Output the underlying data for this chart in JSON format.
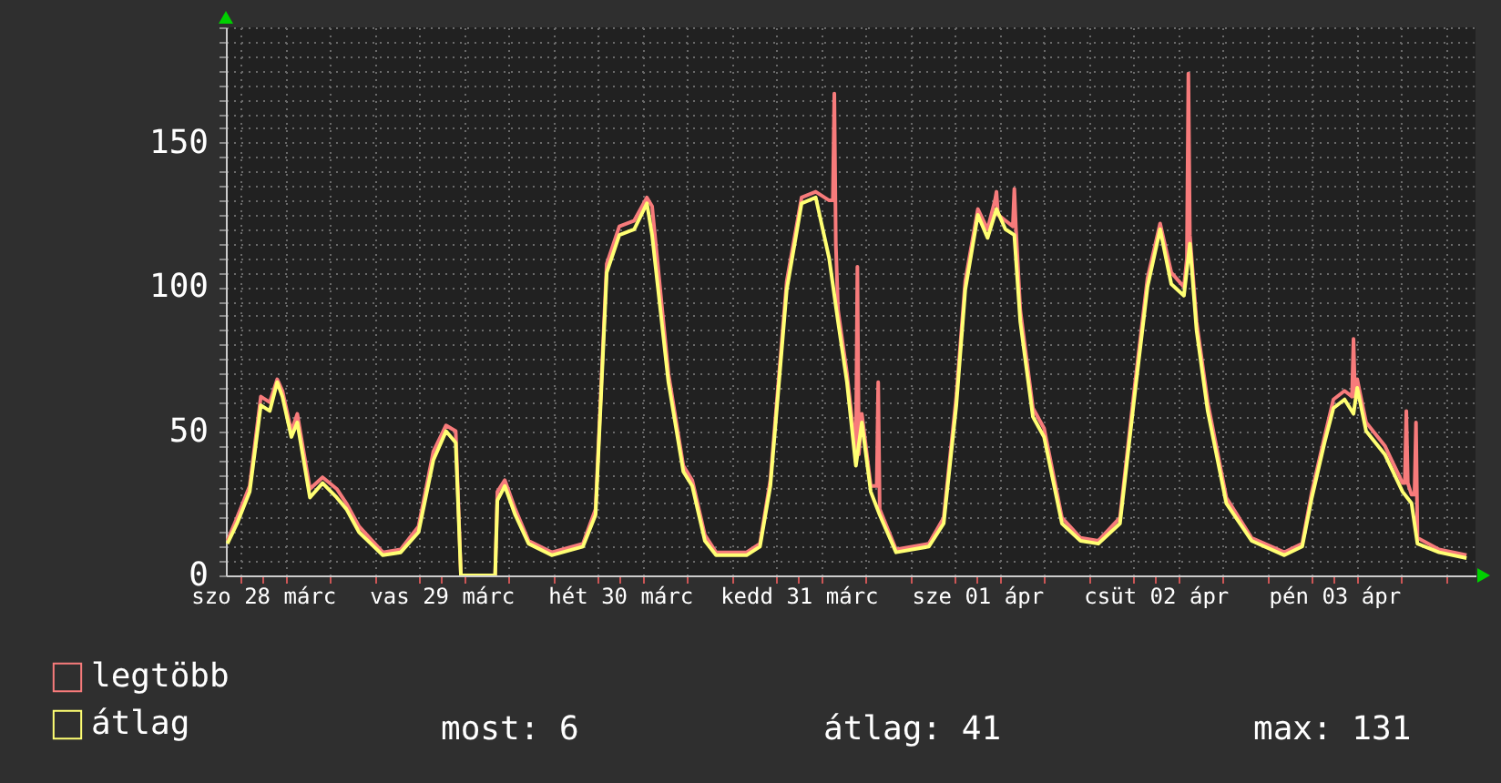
{
  "chart_data": {
    "type": "line",
    "xlim": [
      "--03-28T04:00",
      "--04-04T04:00"
    ],
    "xticks": [
      {
        "value": "--03-28T06:00",
        "label": null
      },
      {
        "value": "--03-28T09:00",
        "label": "szo 28 márc"
      },
      {
        "value": "--03-28T12:00",
        "label": null
      },
      {
        "value": "--03-28T18:00",
        "label": null
      },
      {
        "value": "--03-29T00:00",
        "label": null
      },
      {
        "value": "--03-29T06:00",
        "label": null
      },
      {
        "value": "--03-29T09:00",
        "label": "vas 29 márc"
      },
      {
        "value": "--03-29T12:00",
        "label": null
      },
      {
        "value": "--03-29T18:00",
        "label": null
      },
      {
        "value": "--03-30T00:00",
        "label": null
      },
      {
        "value": "--03-30T06:00",
        "label": null
      },
      {
        "value": "--03-30T09:00",
        "label": "hét 30 márc"
      },
      {
        "value": "--03-30T12:00",
        "label": null
      },
      {
        "value": "--03-30T18:00",
        "label": null
      },
      {
        "value": "--03-31T00:00",
        "label": null
      },
      {
        "value": "--03-31T06:00",
        "label": null
      },
      {
        "value": "--03-31T09:00",
        "label": "kedd 31 márc"
      },
      {
        "value": "--03-31T12:00",
        "label": null
      },
      {
        "value": "--03-31T18:00",
        "label": null
      },
      {
        "value": "--04-01T00:00",
        "label": null
      },
      {
        "value": "--04-01T06:00",
        "label": null
      },
      {
        "value": "--04-01T09:00",
        "label": "sze 01 ápr"
      },
      {
        "value": "--04-01T12:00",
        "label": null
      },
      {
        "value": "--04-01T18:00",
        "label": null
      },
      {
        "value": "--04-02T00:00",
        "label": null
      },
      {
        "value": "--04-02T06:00",
        "label": null
      },
      {
        "value": "--04-02T09:00",
        "label": "csüt 02 ápr"
      },
      {
        "value": "--04-02T12:00",
        "label": null
      },
      {
        "value": "--04-02T18:00",
        "label": null
      },
      {
        "value": "--04-03T00:00",
        "label": null
      },
      {
        "value": "--04-03T06:00",
        "label": null
      },
      {
        "value": "--04-03T09:00",
        "label": "pén 03 ápr"
      },
      {
        "value": "--04-03T12:00",
        "label": null
      },
      {
        "value": "--04-03T18:00",
        "label": null
      },
      {
        "value": "--04-04T00:00",
        "label": null
      }
    ],
    "ylim": [
      0,
      190
    ],
    "yticks": [
      0,
      {
        "value": 5,
        "label": null
      },
      {
        "value": 10,
        "label": null
      },
      {
        "value": 15,
        "label": null
      },
      {
        "value": 20,
        "label": null
      },
      {
        "value": 25,
        "label": null
      },
      {
        "value": 30,
        "label": null
      },
      {
        "value": 35,
        "label": null
      },
      {
        "value": 40,
        "label": null
      },
      {
        "value": 45,
        "label": null
      },
      50,
      {
        "value": 55,
        "label": null
      },
      {
        "value": 60,
        "label": null
      },
      {
        "value": 65,
        "label": null
      },
      {
        "value": 70,
        "label": null
      },
      {
        "value": 75,
        "label": null
      },
      {
        "value": 80,
        "label": null
      },
      {
        "value": 85,
        "label": null
      },
      {
        "value": 90,
        "label": null
      },
      {
        "value": 95,
        "label": null
      },
      100,
      {
        "value": 105,
        "label": null
      },
      {
        "value": 110,
        "label": null
      },
      {
        "value": 115,
        "label": null
      },
      {
        "value": 120,
        "label": null
      },
      {
        "value": 125,
        "label": null
      },
      {
        "value": 130,
        "label": null
      },
      {
        "value": 135,
        "label": null
      },
      {
        "value": 140,
        "label": null
      },
      {
        "value": 145,
        "label": null
      },
      150,
      {
        "value": 155,
        "label": null
      },
      {
        "value": 160,
        "label": null
      },
      {
        "value": 165,
        "label": null
      },
      {
        "value": 170,
        "label": null
      },
      {
        "value": 175,
        "label": null
      },
      {
        "value": 180,
        "label": null
      },
      {
        "value": 185,
        "label": null
      },
      {
        "value": 190,
        "label": null
      }
    ],
    "grid": true,
    "legend": "bottom",
    "series": [
      {
        "name": "legtöbb",
        "color": "#f77b7b",
        "x": [
          "--03-28T04:12",
          "--03-28T05:30",
          "--03-28T07:12",
          "--03-28T08:42",
          "--03-28T09:54",
          "--03-28T10:54",
          "--03-28T11:36",
          "--03-28T12:48",
          "--03-28T13:36",
          "--03-28T15:18",
          "--03-28T17:00",
          "--03-28T18:54",
          "--03-28T20:12",
          "--03-28T21:54",
          "--03-29T01:06",
          "--03-29T03:30",
          "--03-29T05:54",
          "--03-29T07:54",
          "--03-29T09:36",
          "--03-29T10:54",
          "--03-29T11:36",
          "--03-29T16:12",
          "--03-29T16:30",
          "--03-29T17:30",
          "--03-29T18:54",
          "--03-29T20:42",
          "--03-29T23:48",
          "--03-30T04:00",
          "--03-30T05:42",
          "--03-30T07:12",
          "--03-30T08:54",
          "--03-30T10:54",
          "--03-30T12:36",
          "--03-30T13:18",
          "--03-30T15:30",
          "--03-30T17:30",
          "--03-30T18:42",
          "--03-30T20:24",
          "--03-30T21:54",
          "--03-31T02:00",
          "--03-31T03:48",
          "--03-31T05:12",
          "--03-31T07:24",
          "--03-31T09:24",
          "--03-31T11:18",
          "--03-31T13:06",
          "--03-31T13:36",
          "--03-31T13:48",
          "--03-31T14:00",
          "--03-31T14:18",
          "--03-31T15:30",
          "--03-31T16:42",
          "--03-31T16:54",
          "--03-31T17:06",
          "--03-31T17:30",
          "--03-31T18:42",
          "--03-31T19:30",
          "--03-31T19:42",
          "--03-31T19:54",
          "--03-31T22:06",
          "--04-01T02:30",
          "--04-01T04:30",
          "--04-01T06:12",
          "--04-01T07:24",
          "--04-01T09:06",
          "--04-01T10:24",
          "--04-01T11:24",
          "--04-01T11:36",
          "--04-01T11:48",
          "--04-01T12:48",
          "--04-01T13:48",
          "--04-01T14:00",
          "--04-01T14:12",
          "--04-01T14:48",
          "--04-01T16:30",
          "--04-01T18:00",
          "--04-01T20:24",
          "--04-01T22:54",
          "--04-02T01:18",
          "--04-02T04:12",
          "--04-02T06:12",
          "--04-02T07:54",
          "--04-02T09:36",
          "--04-02T11:06",
          "--04-02T12:48",
          "--04-02T13:12",
          "--04-02T13:24",
          "--04-02T13:36",
          "--04-02T14:30",
          "--04-02T16:00",
          "--04-02T18:30",
          "--04-02T21:54",
          "--04-03T02:18",
          "--04-03T04:42",
          "--04-03T06:00",
          "--04-03T07:42",
          "--04-03T08:54",
          "--04-03T10:24",
          "--04-03T11:24",
          "--04-03T11:36",
          "--04-03T11:48",
          "--04-03T12:06",
          "--04-03T13:18",
          "--04-03T15:48",
          "--04-03T18:12",
          "--04-03T18:30",
          "--04-03T18:42",
          "--04-03T18:54",
          "--04-03T19:24",
          "--04-03T19:48",
          "--04-03T20:00",
          "--04-03T20:12",
          "--04-03T23:06",
          "--04-04T02:48"
        ],
        "values": [
          12,
          20,
          31,
          62,
          60,
          68,
          64,
          50,
          56,
          30,
          34,
          30,
          25,
          17,
          8,
          9,
          17,
          43,
          52,
          50,
          0,
          0,
          29,
          33,
          23,
          12,
          8,
          11,
          23,
          108,
          121,
          123,
          131,
          128,
          70,
          38,
          33,
          14,
          8,
          8,
          11,
          33,
          102,
          131,
          133,
          130,
          130,
          167,
          115,
          92,
          70,
          42,
          107,
          42,
          56,
          31,
          31,
          67,
          23,
          9,
          11,
          20,
          62,
          102,
          127,
          120,
          130,
          133,
          125,
          123,
          121,
          134,
          121,
          92,
          58,
          51,
          20,
          13,
          12,
          20,
          66,
          103,
          122,
          105,
          100,
          110,
          174,
          118,
          88,
          60,
          27,
          13,
          8,
          11,
          29,
          48,
          61,
          64,
          62,
          82,
          62,
          68,
          53,
          45,
          32,
          32,
          57,
          32,
          28,
          28,
          53,
          13,
          9,
          7
        ]
      },
      {
        "name": "átlag",
        "color": "#ffff73",
        "x": [
          "--03-28T04:12",
          "--03-28T05:30",
          "--03-28T07:12",
          "--03-28T08:42",
          "--03-28T09:54",
          "--03-28T10:54",
          "--03-28T11:36",
          "--03-28T12:48",
          "--03-28T13:36",
          "--03-28T15:18",
          "--03-28T17:00",
          "--03-28T18:54",
          "--03-28T20:12",
          "--03-28T21:54",
          "--03-29T01:06",
          "--03-29T03:30",
          "--03-29T05:54",
          "--03-29T07:54",
          "--03-29T09:36",
          "--03-29T10:54",
          "--03-29T11:36",
          "--03-29T16:12",
          "--03-29T16:30",
          "--03-29T17:30",
          "--03-29T18:54",
          "--03-29T20:42",
          "--03-29T23:48",
          "--03-30T04:00",
          "--03-30T05:42",
          "--03-30T07:12",
          "--03-30T08:54",
          "--03-30T10:54",
          "--03-30T12:36",
          "--03-30T13:18",
          "--03-30T15:30",
          "--03-30T17:30",
          "--03-30T18:42",
          "--03-30T20:24",
          "--03-30T21:54",
          "--03-31T02:00",
          "--03-31T03:48",
          "--03-31T05:12",
          "--03-31T07:24",
          "--03-31T09:24",
          "--03-31T11:18",
          "--03-31T13:06",
          "--03-31T14:18",
          "--03-31T15:30",
          "--03-31T16:42",
          "--03-31T17:30",
          "--03-31T18:42",
          "--03-31T19:54",
          "--03-31T22:06",
          "--04-01T02:30",
          "--04-01T04:30",
          "--04-01T06:12",
          "--04-01T07:24",
          "--04-01T09:06",
          "--04-01T10:24",
          "--04-01T11:36",
          "--04-01T12:48",
          "--04-01T14:00",
          "--04-01T14:48",
          "--04-01T16:30",
          "--04-01T18:00",
          "--04-01T20:24",
          "--04-01T22:54",
          "--04-02T01:18",
          "--04-02T04:12",
          "--04-02T06:12",
          "--04-02T07:54",
          "--04-02T09:36",
          "--04-02T11:06",
          "--04-02T12:48",
          "--04-02T13:36",
          "--04-02T14:30",
          "--04-02T16:00",
          "--04-02T18:30",
          "--04-02T21:54",
          "--04-03T02:18",
          "--04-03T04:42",
          "--04-03T06:00",
          "--04-03T07:42",
          "--04-03T08:54",
          "--04-03T10:24",
          "--04-03T11:36",
          "--04-03T12:06",
          "--04-03T13:18",
          "--04-03T15:48",
          "--04-03T18:12",
          "--04-03T19:24",
          "--04-03T20:12",
          "--04-03T23:06",
          "--04-04T02:48"
        ],
        "values": [
          11,
          18,
          29,
          59,
          57,
          67,
          62,
          48,
          53,
          27,
          32,
          27,
          23,
          15,
          7,
          8,
          15,
          40,
          50,
          46,
          0,
          0,
          26,
          31,
          21,
          11,
          7,
          10,
          21,
          105,
          118,
          120,
          129,
          118,
          67,
          36,
          31,
          12,
          7,
          7,
          10,
          31,
          99,
          129,
          131,
          110,
          88,
          67,
          38,
          53,
          29,
          21,
          8,
          10,
          18,
          59,
          99,
          125,
          117,
          127,
          120,
          118,
          88,
          55,
          48,
          18,
          12,
          11,
          18,
          63,
          100,
          120,
          101,
          97,
          115,
          85,
          57,
          25,
          12,
          7,
          10,
          27,
          46,
          58,
          61,
          56,
          65,
          50,
          42,
          29,
          25,
          11,
          8,
          6
        ]
      }
    ],
    "annotations": [
      "most: 6",
      "átlag: 41",
      "max: 131"
    ]
  }
}
